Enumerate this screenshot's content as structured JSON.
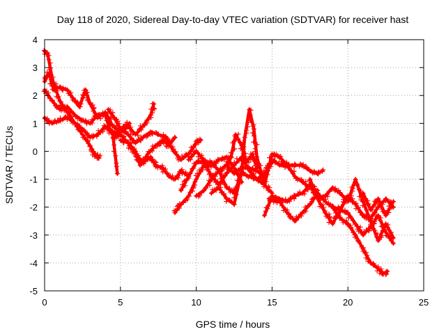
{
  "chart_data": {
    "type": "scatter",
    "title": "Day 118 of 2020, Sidereal Day-to-day VTEC variation (SDTVAR) for receiver hast",
    "xlabel": "GPS time / hours",
    "ylabel": "SDTVAR / TECUs",
    "xlim": [
      0,
      25
    ],
    "ylim": [
      -5,
      4
    ],
    "xticks": [
      0,
      5,
      10,
      15,
      20,
      25
    ],
    "yticks": [
      -5,
      -4,
      -3,
      -2,
      -1,
      0,
      1,
      2,
      3,
      4
    ],
    "grid": true,
    "marker": "+",
    "color": "#ff0000",
    "series": [
      {
        "name": "s1",
        "x": [
          0.0,
          0.2,
          0.5,
          1.0,
          1.5,
          2.0,
          2.5,
          3.0,
          3.3,
          3.5,
          3.6
        ],
        "y": [
          3.6,
          3.5,
          2.6,
          1.8,
          1.4,
          1.0,
          0.6,
          0.2,
          -0.1,
          -0.2,
          -0.2
        ]
      },
      {
        "name": "s2",
        "x": [
          0.0,
          0.3,
          0.6,
          1.0,
          1.5,
          2.0,
          2.3,
          2.7
        ],
        "y": [
          2.5,
          2.8,
          2.2,
          2.3,
          2.2,
          1.8,
          1.6,
          2.2
        ]
      },
      {
        "name": "s3",
        "x": [
          0.0,
          0.5,
          1.0,
          1.5,
          2.0,
          2.5,
          3.0,
          3.5,
          4.0,
          4.5,
          4.8
        ],
        "y": [
          1.2,
          1.0,
          1.1,
          1.2,
          1.0,
          0.8,
          0.5,
          0.6,
          0.9,
          0.6,
          -0.8
        ]
      },
      {
        "name": "s4",
        "x": [
          0.0,
          0.5,
          1.0,
          1.5,
          2.0,
          2.5,
          3.0,
          3.5,
          4.0,
          4.3,
          4.8,
          5.2,
          5.6
        ],
        "y": [
          2.2,
          1.8,
          1.5,
          1.6,
          1.3,
          1.1,
          1.0,
          1.3,
          1.3,
          0.8,
          0.6,
          0.8,
          1.0
        ]
      },
      {
        "name": "s5",
        "x": [
          2.7,
          3.0,
          3.5,
          4.0,
          4.5,
          5.0,
          5.5,
          6.0,
          6.5,
          7.0,
          7.2
        ],
        "y": [
          2.2,
          1.7,
          1.2,
          1.4,
          0.9,
          0.7,
          0.9,
          0.6,
          0.9,
          1.3,
          1.7
        ]
      },
      {
        "name": "s6",
        "x": [
          4.2,
          4.6,
          5.0,
          5.5,
          6.0,
          6.5,
          7.0,
          7.5,
          8.0,
          8.5,
          9.0,
          9.5,
          10.0,
          10.3
        ],
        "y": [
          1.5,
          1.2,
          0.8,
          0.6,
          0.3,
          0.5,
          0.7,
          0.6,
          0.5,
          0.0,
          -0.3,
          -0.1,
          0.3,
          0.4
        ]
      },
      {
        "name": "s7",
        "x": [
          4.5,
          5.0,
          5.5,
          6.0,
          6.3,
          6.8,
          7.3,
          7.8,
          8.2,
          8.6
        ],
        "y": [
          0.5,
          0.6,
          0.3,
          0.0,
          -0.5,
          -0.1,
          0.2,
          0.4,
          0.2,
          0.5
        ]
      },
      {
        "name": "s8",
        "x": [
          5.0,
          5.5,
          6.0,
          6.5,
          7.0,
          7.3,
          7.8,
          8.2,
          8.6,
          9.0,
          9.5
        ],
        "y": [
          0.4,
          0.3,
          -0.1,
          -0.4,
          -0.2,
          -0.5,
          -0.6,
          -0.9,
          -1.0,
          -0.7,
          -0.9
        ]
      },
      {
        "name": "s9",
        "x": [
          8.6,
          9.0,
          9.5,
          10.0,
          10.5,
          11.0,
          11.5,
          12.0,
          12.5,
          13.0
        ],
        "y": [
          -2.2,
          -1.9,
          -1.6,
          -1.0,
          -0.5,
          -0.5,
          -0.3,
          -0.2,
          -0.6,
          -1.1
        ]
      },
      {
        "name": "s10",
        "x": [
          9.0,
          9.5,
          10.0,
          10.5,
          11.0,
          11.5,
          12.0,
          12.5,
          13.0,
          13.5,
          14.0,
          14.5,
          15.0,
          15.5,
          16.0,
          16.5,
          17.0,
          17.5,
          18.0,
          18.3
        ],
        "y": [
          -1.4,
          -0.9,
          -0.4,
          -0.4,
          -0.4,
          -0.7,
          -0.5,
          -0.8,
          -0.6,
          -0.6,
          -0.7,
          -0.9,
          -0.3,
          -0.5,
          -0.5,
          -0.5,
          -0.5,
          -0.7,
          -0.8,
          -0.7
        ]
      },
      {
        "name": "s11",
        "x": [
          9.5,
          10.0,
          10.5,
          11.0,
          11.5,
          12.0,
          12.5,
          13.0,
          13.5,
          14.0,
          14.5,
          15.0,
          15.5,
          16.0,
          16.5,
          17.0,
          17.5,
          18.0
        ],
        "y": [
          -0.3,
          0.0,
          -0.3,
          -0.9,
          -1.2,
          -0.8,
          -0.5,
          -0.2,
          -0.7,
          -1.0,
          -1.2,
          -0.1,
          -0.2,
          -0.5,
          -0.9,
          -1.1,
          -1.3,
          -1.4
        ]
      },
      {
        "name": "s12",
        "x": [
          10.0,
          10.5,
          11.0,
          11.5,
          12.0,
          12.5,
          13.0,
          13.5,
          14.0,
          14.5,
          15.0
        ],
        "y": [
          -1.6,
          -1.4,
          -1.0,
          -0.7,
          -1.3,
          -1.5,
          -0.8,
          -0.9,
          -1.0,
          -0.8,
          -0.4
        ]
      },
      {
        "name": "s13",
        "x": [
          11.0,
          11.5,
          12.0,
          12.5,
          13.0,
          13.2,
          13.5,
          13.8,
          14.0,
          14.5,
          15.0
        ],
        "y": [
          -1.5,
          -1.3,
          -1.7,
          -1.9,
          -0.7,
          0.5,
          1.5,
          0.8,
          -0.2,
          -1.2,
          -1.5
        ]
      },
      {
        "name": "s14",
        "x": [
          12.0,
          12.3,
          12.6,
          13.0,
          13.3,
          13.7,
          14.0
        ],
        "y": [
          -0.5,
          -0.2,
          0.6,
          0.2,
          -0.4,
          -0.1,
          -0.6
        ]
      },
      {
        "name": "s15",
        "x": [
          14.5,
          15.0,
          15.5,
          16.0,
          16.5,
          17.0,
          17.5,
          18.0,
          18.5,
          19.0,
          19.5,
          20.0,
          20.5,
          21.0,
          21.5,
          22.0,
          22.5,
          23.0
        ],
        "y": [
          -2.3,
          -1.6,
          -1.7,
          -1.8,
          -1.6,
          -1.5,
          -1.2,
          -1.7,
          -2.2,
          -2.6,
          -2.1,
          -1.6,
          -1.9,
          -2.3,
          -2.4,
          -2.0,
          -1.7,
          -2.0
        ]
      },
      {
        "name": "s16",
        "x": [
          14.8,
          15.5,
          16.0,
          16.5,
          17.0,
          17.5,
          18.0,
          18.5,
          19.0,
          19.5,
          20.0,
          20.5,
          21.0,
          21.5,
          22.0,
          22.5,
          23.0
        ],
        "y": [
          -1.7,
          -1.8,
          -2.2,
          -2.5,
          -2.2,
          -1.9,
          -1.5,
          -1.8,
          -2.0,
          -2.1,
          -2.2,
          -2.6,
          -3.0,
          -2.7,
          -2.3,
          -2.9,
          -3.3
        ]
      },
      {
        "name": "s17",
        "x": [
          17.5,
          18.0,
          18.5,
          19.0,
          19.5,
          20.0,
          20.5,
          21.0,
          21.5,
          22.0,
          22.5,
          23.0
        ],
        "y": [
          -1.0,
          -1.7,
          -1.6,
          -1.3,
          -1.5,
          -1.8,
          -1.0,
          -1.8,
          -2.5,
          -3.2,
          -2.6,
          -3.1
        ]
      },
      {
        "name": "s18",
        "x": [
          19.0,
          19.5,
          20.0,
          20.5,
          21.0,
          21.5,
          22.0,
          22.3,
          22.6
        ],
        "y": [
          -2.0,
          -2.4,
          -2.6,
          -3.0,
          -3.5,
          -4.0,
          -4.2,
          -4.4,
          -4.3
        ]
      },
      {
        "name": "s19",
        "x": [
          21.0,
          21.5,
          22.0,
          22.5,
          23.0
        ],
        "y": [
          -1.5,
          -2.1,
          -1.7,
          -2.3,
          -1.8
        ]
      }
    ]
  }
}
